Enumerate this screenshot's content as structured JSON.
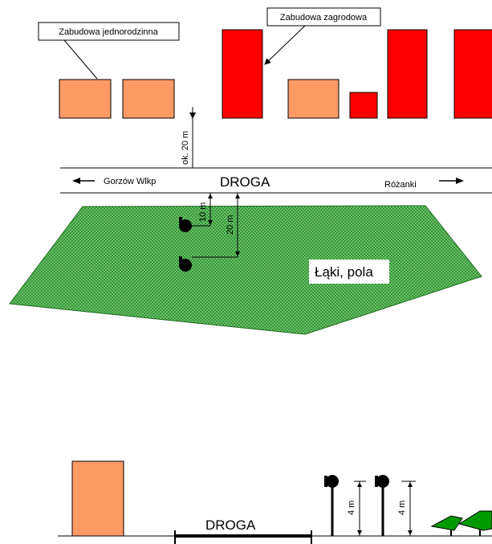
{
  "labels": {
    "zabudowa_jednorodzinna": "Zabudowa jednorodzinna",
    "zabudowa_zagrodowa": "Zabudowa zagrodowa",
    "distance_road": "ok. 20 m",
    "road_label": "DROGA",
    "direction_west": "Gorzów Wlkp",
    "direction_east": "Różanki",
    "dist_10": "10 m",
    "dist_20": "20 m",
    "meadow_label": "Łąki, pola",
    "section_road": "DROGA",
    "height_1": "4 m",
    "height_2": "4 m"
  },
  "colors": {
    "single_family": "#FF9966",
    "farm": "#FF0000",
    "meadow": "#339933",
    "tree": "#009900",
    "line": "#000000"
  },
  "icons": [
    "arrow-left-icon",
    "arrow-right-icon",
    "lamp-icon",
    "tree-icon"
  ]
}
